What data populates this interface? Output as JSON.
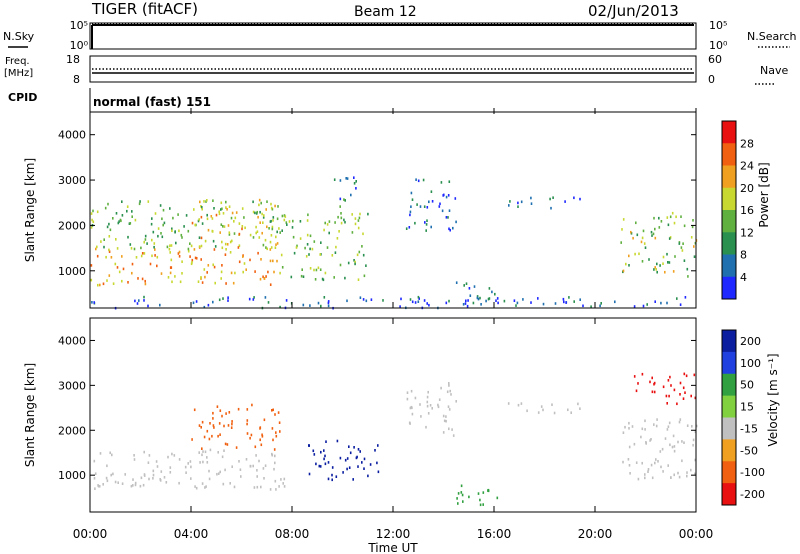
{
  "header": {
    "station": "TIGER (fitACF)",
    "beam": "Beam 12",
    "date": "02/Jun/2013"
  },
  "side_labels": {
    "nsky": "N.Sky",
    "freq_line1": "Freq.",
    "freq_line2": "[MHz]",
    "cpid": "CPID",
    "nsearch": "N.Search",
    "nave": "Nave"
  },
  "cpid_text": "normal (fast) 151",
  "colors": {
    "power_scale": [
      "#1e28ff",
      "#2070b0",
      "#2a9050",
      "#60b040",
      "#c8d830",
      "#f0a020",
      "#f06010",
      "#e81010"
    ],
    "velocity_scale": [
      "#0b1ea0",
      "#2040e0",
      "#30a040",
      "#80d040",
      "#c0c0c0",
      "#f0a020",
      "#f06010",
      "#e81010"
    ]
  },
  "chart_data": [
    {
      "type": "line",
      "name": "noise-panel",
      "left_ticks": [
        "10^5",
        "10^0"
      ],
      "right_ticks": [
        "10^5",
        "10^0"
      ],
      "series": [
        {
          "name": "N.Sky",
          "style": "solid",
          "level": 0.92
        },
        {
          "name": "N.Search",
          "style": "dotted",
          "level": 0.97
        }
      ]
    },
    {
      "type": "line",
      "name": "freq-nave-panel",
      "left_ticks": [
        "18",
        "8"
      ],
      "right_ticks": [
        "60",
        "0"
      ],
      "series": [
        {
          "name": "Freq",
          "style": "solid",
          "value_mhz": 11
        },
        {
          "name": "Nave",
          "style": "dotted",
          "value": 16
        }
      ]
    },
    {
      "type": "heatmap",
      "name": "power",
      "ylabel": "Slant Range [km]",
      "ylim": [
        180,
        4500
      ],
      "y_ticks": [
        1000,
        2000,
        3000,
        4000
      ],
      "xlim": [
        0,
        24
      ],
      "colorbar": {
        "label": "Power [dB]",
        "ticks": [
          4,
          8,
          12,
          16,
          20,
          24,
          28
        ],
        "range": [
          0,
          32
        ]
      },
      "echo_regions": [
        {
          "t0": 0,
          "t1": 7.7,
          "r0": 700,
          "r1": 1600,
          "v": 22
        },
        {
          "t0": 0,
          "t1": 7.5,
          "r0": 1500,
          "r1": 2600,
          "v": 14
        },
        {
          "t0": 4,
          "t1": 7.5,
          "r0": 1600,
          "r1": 2600,
          "v": 20
        },
        {
          "t0": 7.5,
          "t1": 11.0,
          "r0": 800,
          "r1": 2300,
          "v": 14
        },
        {
          "t0": 9.5,
          "t1": 10.6,
          "r0": 2400,
          "r1": 3100,
          "v": 9
        },
        {
          "t0": 12.5,
          "t1": 14.5,
          "r0": 1900,
          "r1": 3100,
          "v": 6
        },
        {
          "t0": 14.3,
          "t1": 16.3,
          "r0": 300,
          "r1": 800,
          "v": 7
        },
        {
          "t0": 16.5,
          "t1": 19.5,
          "r0": 2400,
          "r1": 2650,
          "v": 5
        },
        {
          "t0": 21.0,
          "t1": 24.0,
          "r0": 900,
          "r1": 2300,
          "v": 15
        },
        {
          "t0": 0,
          "t1": 24.0,
          "r0": 200,
          "r1": 450,
          "v": 5
        }
      ]
    },
    {
      "type": "heatmap",
      "name": "velocity",
      "ylabel": "Slant Range [km]",
      "ylim": [
        180,
        4500
      ],
      "y_ticks": [
        1000,
        2000,
        3000,
        4000
      ],
      "xlim": [
        0,
        24
      ],
      "colorbar": {
        "label": "Velocity [m s⁻¹]",
        "ticks": [
          "200",
          "100",
          "50",
          "15",
          "-15",
          "-50",
          "-100",
          "-200"
        ]
      },
      "echo_regions": [
        {
          "t0": 0,
          "t1": 7.7,
          "r0": 700,
          "r1": 1600,
          "v": 0
        },
        {
          "t0": 4,
          "t1": 7.5,
          "r0": 1600,
          "r1": 2600,
          "v": -60
        },
        {
          "t0": 8.5,
          "t1": 11.5,
          "r0": 900,
          "r1": 1800,
          "v": 200
        },
        {
          "t0": 12.5,
          "t1": 14.5,
          "r0": 1900,
          "r1": 3100,
          "v": 0
        },
        {
          "t0": 14.3,
          "t1": 16.3,
          "r0": 300,
          "r1": 800,
          "v": 60
        },
        {
          "t0": 16.5,
          "t1": 19.5,
          "r0": 2400,
          "r1": 2650,
          "v": 0
        },
        {
          "t0": 21.0,
          "t1": 24.0,
          "r0": 900,
          "r1": 2300,
          "v": 0
        },
        {
          "t0": 21.5,
          "t1": 24.0,
          "r0": 2600,
          "r1": 3300,
          "v": -200
        }
      ]
    }
  ],
  "x_axis": {
    "label": "Time UT",
    "ticks": [
      "00:00",
      "04:00",
      "08:00",
      "12:00",
      "16:00",
      "20:00",
      "00:00"
    ]
  }
}
